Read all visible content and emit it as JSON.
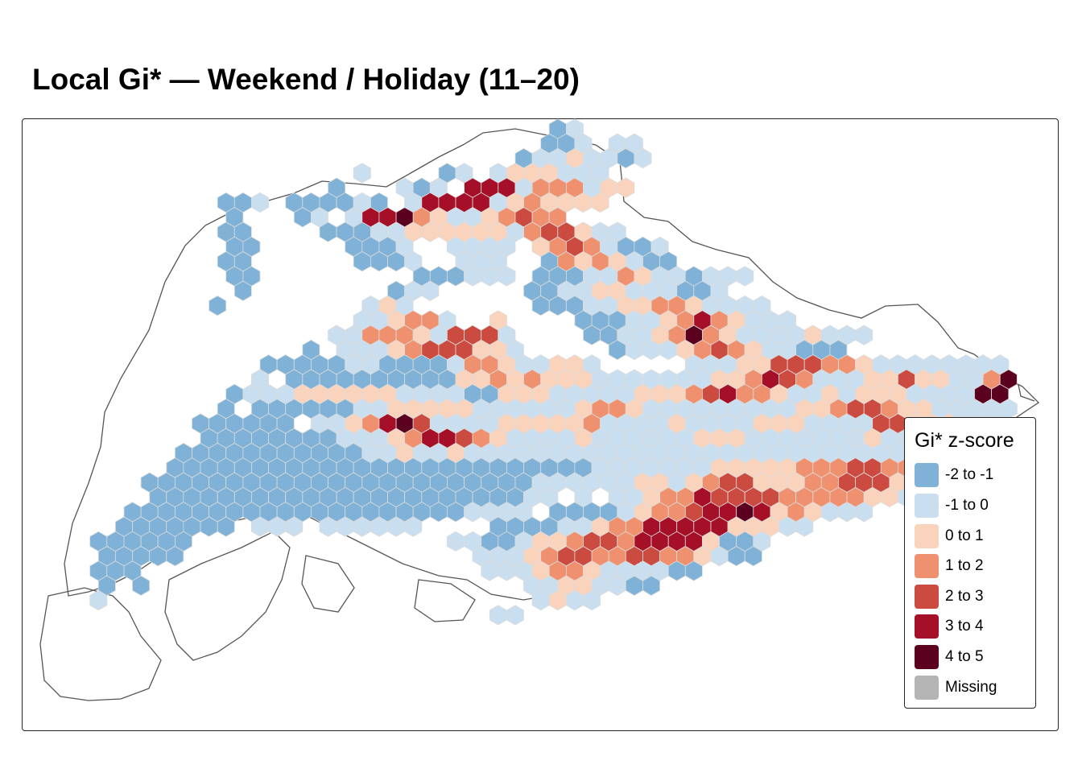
{
  "title": "Local Gi* — Weekend / Holiday (11–20)",
  "legend": {
    "title": "Gi* z-score",
    "items": [
      {
        "label": "-2 to -1",
        "color": "#7fb2d6"
      },
      {
        "label": "-1 to 0",
        "color": "#c9deee"
      },
      {
        "label": "0 to 1",
        "color": "#fad3bd"
      },
      {
        "label": "1 to 2",
        "color": "#ef916f"
      },
      {
        "label": "2 to 3",
        "color": "#cc4b40"
      },
      {
        "label": "3 to 4",
        "color": "#a50f27"
      },
      {
        "label": "4 to 5",
        "color": "#5c0020"
      },
      {
        "label": "Missing",
        "color": "#b4b4b4"
      }
    ]
  },
  "map": {
    "cell_border_color": "#dcdcdc",
    "outline_color": "#555555"
  }
}
